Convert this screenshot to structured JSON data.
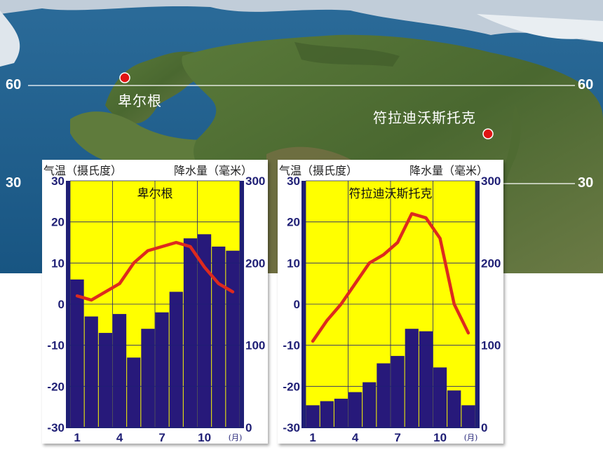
{
  "map": {
    "latitudes": [
      {
        "label_left": "60",
        "label_right": "60"
      },
      {
        "label_left": "30",
        "label_right": "30"
      }
    ],
    "cities": [
      {
        "name": "卑尔根"
      },
      {
        "name": "符拉迪沃斯托克"
      }
    ],
    "colors": {
      "ocean": "#1f5c8c",
      "land": "#4f6b32",
      "city_dot": "#e01414"
    }
  },
  "chart_data": [
    {
      "type": "bar+line",
      "title": "卑尔根",
      "left_axis_header": "气温（摄氏度）",
      "right_axis_header": "降水量（毫米）",
      "left_ticks": [
        "30",
        "20",
        "10",
        "0",
        "-10",
        "-20",
        "-30"
      ],
      "right_ticks": [
        "300",
        "200",
        "100",
        "0"
      ],
      "x_ticks": [
        "1",
        "4",
        "7",
        "10"
      ],
      "x_unit": "(月)",
      "months": [
        1,
        2,
        3,
        4,
        5,
        6,
        7,
        8,
        9,
        10,
        11,
        12
      ],
      "precipitation_mm": [
        180,
        135,
        115,
        138,
        85,
        120,
        140,
        165,
        230,
        235,
        220,
        215
      ],
      "temperature_c": [
        2,
        1,
        3,
        5,
        10,
        13,
        14,
        15,
        14,
        9,
        5,
        3
      ],
      "temp_ylim": [
        -30,
        30
      ],
      "precip_ylim": [
        0,
        300
      ],
      "colors": {
        "background": "#ffff00",
        "bars": "#27197a",
        "line": "#dd2a1e"
      }
    },
    {
      "type": "bar+line",
      "title": "符拉迪沃斯托克",
      "left_axis_header": "气温（摄氏度）",
      "right_axis_header": "降水量（毫米）",
      "left_ticks": [
        "30",
        "20",
        "10",
        "0",
        "-10",
        "-20",
        "-30"
      ],
      "right_ticks": [
        "300",
        "200",
        "100",
        "0"
      ],
      "x_ticks": [
        "1",
        "4",
        "7",
        "10"
      ],
      "x_unit": "(月)",
      "months": [
        1,
        2,
        3,
        4,
        5,
        6,
        7,
        8,
        9,
        10,
        11,
        12
      ],
      "precipitation_mm": [
        27,
        32,
        35,
        43,
        55,
        78,
        87,
        120,
        117,
        73,
        45,
        27
      ],
      "temperature_c": [
        -9,
        -4,
        0,
        5,
        10,
        12,
        15,
        22,
        21,
        16,
        0,
        -7
      ],
      "temp_ylim": [
        -30,
        30
      ],
      "precip_ylim": [
        0,
        300
      ],
      "colors": {
        "background": "#ffff00",
        "bars": "#27197a",
        "line": "#dd2a1e"
      }
    }
  ]
}
